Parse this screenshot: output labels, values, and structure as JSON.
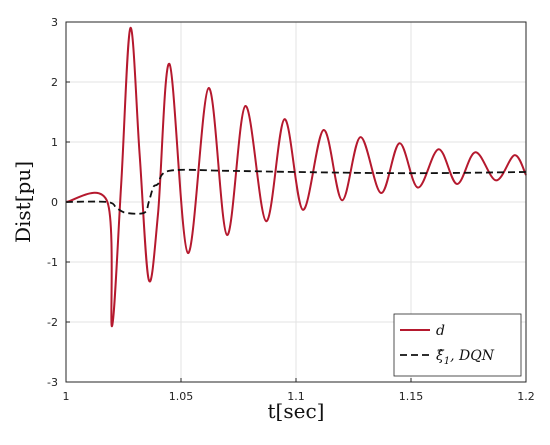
{
  "chart_data": {
    "type": "line",
    "title": "",
    "xlabel": "t[sec]",
    "ylabel": "Dist[pu]",
    "xlim": [
      1,
      1.2
    ],
    "ylim": [
      -3,
      3
    ],
    "xticks": [
      "1",
      "1.05",
      "1.1",
      "1.15",
      "1.2"
    ],
    "yticks": [
      "3",
      "2",
      "1",
      "0",
      "-1",
      "-2",
      "-3"
    ],
    "grid": true,
    "legend_position": "bottom-right",
    "series": [
      {
        "name": "d",
        "color": "#B5192E",
        "style": "solid",
        "x": [
          1.0,
          1.018,
          1.02,
          1.024,
          1.028,
          1.032,
          1.036,
          1.04,
          1.045,
          1.053,
          1.062,
          1.07,
          1.078,
          1.087,
          1.095,
          1.103,
          1.112,
          1.12,
          1.128,
          1.137,
          1.145,
          1.153,
          1.162,
          1.17,
          1.178,
          1.187,
          1.195,
          1.2
        ],
        "y": [
          0.0,
          0.0,
          -2.07,
          0.3,
          2.9,
          0.8,
          -1.3,
          -0.2,
          2.3,
          -0.85,
          1.9,
          -0.55,
          1.6,
          -0.32,
          1.38,
          -0.13,
          1.2,
          0.03,
          1.08,
          0.15,
          0.98,
          0.24,
          0.88,
          0.3,
          0.83,
          0.36,
          0.78,
          0.45
        ]
      },
      {
        "name": "ξ̂1, DQN",
        "color": "#111111",
        "style": "dashed",
        "x": [
          1.0,
          1.018,
          1.022,
          1.026,
          1.034,
          1.036,
          1.038,
          1.04,
          1.045,
          1.07,
          1.1,
          1.15,
          1.2
        ],
        "y": [
          0.0,
          0.0,
          -0.1,
          -0.18,
          -0.18,
          0.0,
          0.25,
          0.3,
          0.52,
          0.52,
          0.5,
          0.48,
          0.5
        ]
      }
    ],
    "legend_entries": [
      {
        "label_main": "d",
        "label_sub": ""
      },
      {
        "label_main": "ξ̂",
        "label_sub": "1",
        "label_rest": ", DQN"
      }
    ]
  }
}
